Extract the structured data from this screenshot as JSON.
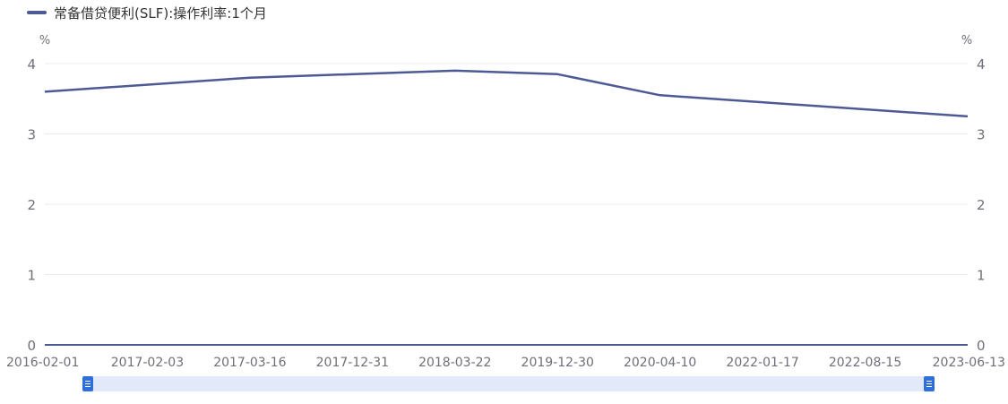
{
  "legend": {
    "label": "常备借贷便利(SLF):操作利率:1个月"
  },
  "colors": {
    "series": "#4e5a96",
    "grid": "#ebebeb",
    "axis": "#4e5a96",
    "text": "#6e7079",
    "zoom_fill": "#e2e9f9",
    "zoom_handle": "#2f6fdc"
  },
  "chart_data": {
    "type": "line",
    "x": [
      "2016-02-01",
      "2017-02-03",
      "2017-03-16",
      "2017-12-31",
      "2018-03-22",
      "2019-12-30",
      "2020-04-10",
      "2022-01-17",
      "2022-08-15",
      "2023-06-13"
    ],
    "series": [
      {
        "name": "常备借贷便利(SLF):操作利率:1个月",
        "values": [
          3.6,
          null,
          3.8,
          null,
          3.9,
          3.85,
          3.55,
          null,
          null,
          3.25
        ]
      }
    ],
    "y_unit_left": "%",
    "y_unit_right": "%",
    "yticks": [
      0,
      1,
      2,
      3,
      4
    ],
    "ylim": [
      0,
      4
    ],
    "grid": true,
    "legend_position": "top-left",
    "data_zoom": {
      "start": 0,
      "end": 1
    }
  }
}
